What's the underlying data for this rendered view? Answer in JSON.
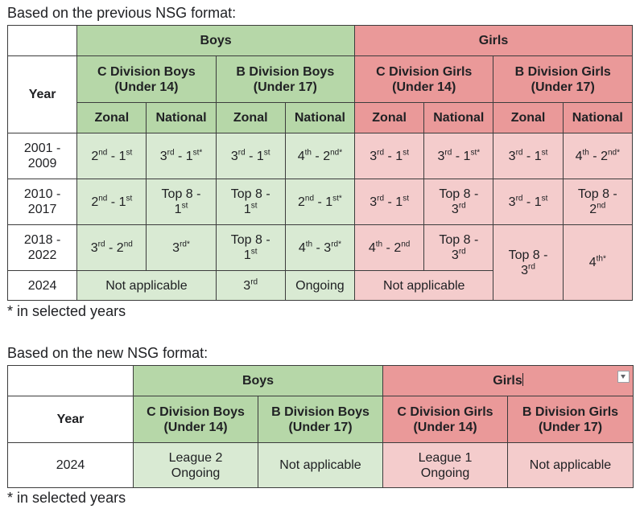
{
  "previous": {
    "caption": "Based on the previous NSG format:",
    "boys": "Boys",
    "girls": "Girls",
    "year_header": "Year",
    "c_boys": [
      "C Division Boys",
      "(Under 14)"
    ],
    "b_boys": [
      "B Division Boys",
      "(Under 17)"
    ],
    "c_girls": [
      "C Division Girls",
      "(Under 14)"
    ],
    "b_girls": [
      "B Division Girls",
      "(Under 17)"
    ],
    "zonal": "Zonal",
    "national": "National",
    "rows": {
      "r1": {
        "year": [
          "2001 -",
          "2009"
        ],
        "cbz": [
          "2",
          "nd",
          " - 1",
          "st"
        ],
        "cbn": [
          "3",
          "rd",
          " - 1",
          "st*"
        ],
        "bbz": [
          "3",
          "rd",
          " - 1",
          "st"
        ],
        "bbn": [
          "4",
          "th",
          " - 2",
          "nd*"
        ],
        "cgz": [
          "3",
          "rd",
          " - 1",
          "st"
        ],
        "cgn": [
          "3",
          "rd",
          " - 1",
          "st*"
        ],
        "bgz": [
          "3",
          "rd",
          " - 1",
          "st"
        ],
        "bgn": [
          "4",
          "th",
          " - 2",
          "nd*"
        ]
      },
      "r2": {
        "year": [
          "2010 -",
          "2017"
        ],
        "cbz": [
          "2",
          "nd",
          " - 1",
          "st"
        ],
        "cbn": [
          "Top 8 -",
          "1",
          "st"
        ],
        "bbz": [
          "Top 8 -",
          "1",
          "st"
        ],
        "bbn": [
          "2",
          "nd",
          " - 1",
          "st*"
        ],
        "cgz": [
          "3",
          "rd",
          " - 1",
          "st"
        ],
        "cgn": [
          "Top 8 -",
          "3",
          "rd"
        ],
        "bgz": [
          "3",
          "rd",
          " - 1",
          "st"
        ],
        "bgn": [
          "Top 8 -",
          "2",
          "nd"
        ]
      },
      "r3": {
        "year": [
          "2018 -",
          "2022"
        ],
        "cbz": [
          "3",
          "rd",
          " - 2",
          "nd"
        ],
        "cbn": [
          "3",
          "rd*"
        ],
        "bbz": [
          "Top 8 -",
          "1",
          "st"
        ],
        "bbn": [
          "4",
          "th",
          " - 3",
          "rd*"
        ],
        "cgz": [
          "4",
          "th",
          " - 2",
          "nd"
        ],
        "cgn": [
          "Top 8 -",
          "3",
          "rd"
        ],
        "bgz": [
          "Top 8 -",
          "3",
          "rd"
        ],
        "bgn": [
          "4",
          "th*"
        ]
      },
      "r4": {
        "year": "2024",
        "cb": "Not applicable",
        "bbz": [
          "3",
          "rd"
        ],
        "bbn": "Ongoing",
        "cg": "Not applicable"
      }
    },
    "footnote": "* in selected years"
  },
  "new": {
    "caption": "Based on the new NSG format:",
    "boys": "Boys",
    "girls": "Girls",
    "year_header": "Year",
    "c_boys": [
      "C Division Boys",
      "(Under 14)"
    ],
    "b_boys": [
      "B Division Boys",
      "(Under 17)"
    ],
    "c_girls": [
      "C Division Girls",
      "(Under 14)"
    ],
    "b_girls": [
      "B Division Girls",
      "(Under 17)"
    ],
    "row": {
      "year": "2024",
      "cb": [
        "League 2",
        "Ongoing"
      ],
      "bb": "Not applicable",
      "cg": [
        "League 1",
        "Ongoing"
      ],
      "bg": "Not applicable"
    },
    "footnote": "* in selected years"
  },
  "colors": {
    "boys_header": "#b6d7a8",
    "boys_cell": "#d9ead3",
    "girls_header": "#ea9999",
    "girls_cell": "#f4cccc"
  },
  "icons": [
    "dropdown-arrow-icon"
  ]
}
